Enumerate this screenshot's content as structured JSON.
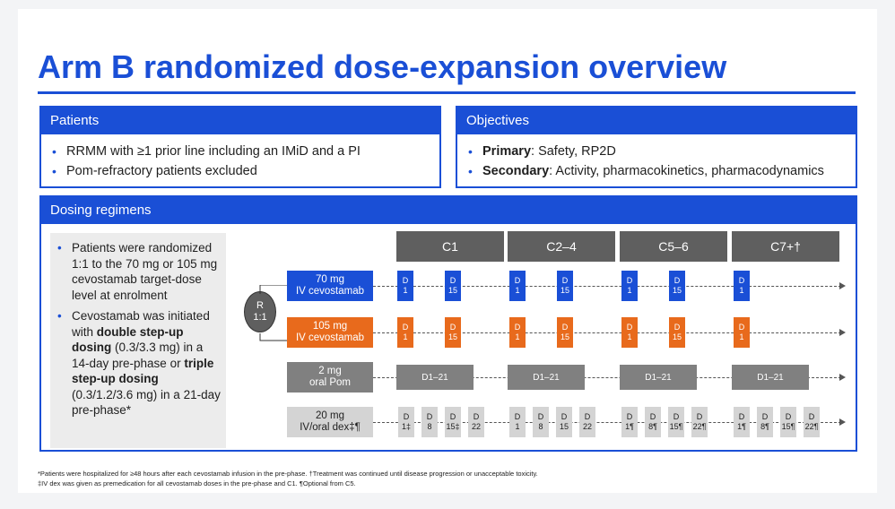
{
  "title": "Arm B randomized dose-expansion overview",
  "patients": {
    "header": "Patients",
    "bullets": [
      "RRMM with ≥1 prior line including an IMiD and a PI",
      "Pom-refractory patients excluded"
    ]
  },
  "objectives": {
    "header": "Objectives",
    "primary_label": "Primary",
    "primary_text": ": Safety, RP2D",
    "secondary_label": "Secondary",
    "secondary_text": ": Activity, pharmacokinetics, pharmacodynamics"
  },
  "dosing": {
    "header": "Dosing regimens",
    "bullet1": "Patients were randomized 1:1 to the 70 mg or 105 mg cevostamab target-dose level at enrolment",
    "bullet2_a": "Cevostamab was initiated with ",
    "bullet2_b": "double step-up dosing",
    "bullet2_c": " (0.3/3.3 mg) in a 14-day pre-phase or ",
    "bullet2_d": "triple step-up dosing",
    "bullet2_e": " (0.3/1.2/3.6 mg) in a 21-day pre-phase*",
    "randomization": {
      "r": "R",
      "ratio": "1:1"
    },
    "cycles": [
      "C1",
      "C2–4",
      "C5–6",
      "C7+†"
    ],
    "arms": {
      "arm70": {
        "line1": "70 mg",
        "line2": "IV cevostamab"
      },
      "arm105": {
        "line1": "105 mg",
        "line2": "IV cevostamab"
      },
      "pom": {
        "line1": "2 mg",
        "line2": "oral Pom"
      },
      "dex": {
        "line1": "20 mg",
        "line2": "IV/oral dex‡¶"
      }
    },
    "cevo_doses": [
      {
        "d": "D",
        "n": "1"
      },
      {
        "d": "D",
        "n": "15"
      },
      {
        "d": "D",
        "n": "1"
      },
      {
        "d": "D",
        "n": "15"
      },
      {
        "d": "D",
        "n": "1"
      },
      {
        "d": "D",
        "n": "15"
      },
      {
        "d": "D",
        "n": "1"
      }
    ],
    "pom_label": "D1–21",
    "dex_doses": [
      [
        "1‡",
        "8",
        "15‡",
        "22"
      ],
      [
        "1",
        "8",
        "15",
        "22"
      ],
      [
        "1¶",
        "8¶",
        "15¶",
        "22¶"
      ],
      [
        "1¶",
        "8¶",
        "15¶",
        "22¶"
      ]
    ],
    "dex_d": "D"
  },
  "footnotes": {
    "line1": "*Patients were hospitalized for ≥48 hours after each cevostamab infusion in the pre-phase. †Treatment was continued until disease progression or unacceptable toxicity.",
    "line2": "‡IV dex was given as premedication for all cevostamab doses in the pre-phase and C1. ¶Optional from C5."
  },
  "colors": {
    "accent": "#1a4fd6",
    "orange": "#e86a1c",
    "grey": "#5f5f5f"
  }
}
